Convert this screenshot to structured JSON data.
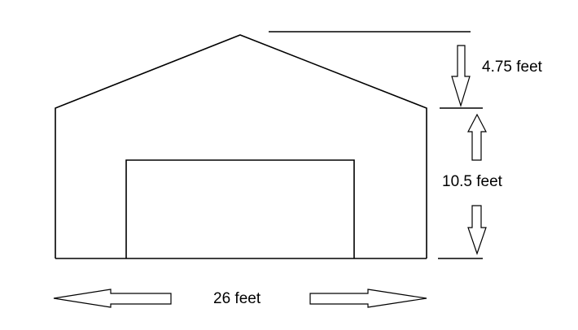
{
  "dimensions": {
    "roof_height_label": "4.75 feet",
    "wall_height_label": "10.5 feet",
    "width_label": "26 feet"
  }
}
